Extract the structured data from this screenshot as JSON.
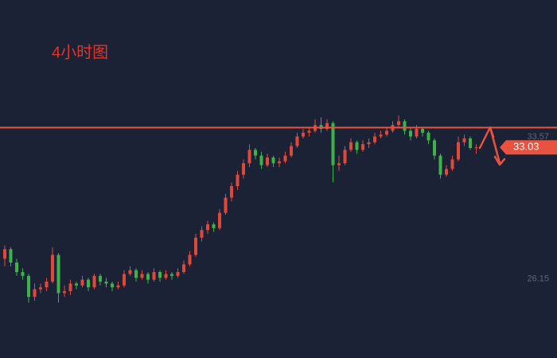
{
  "chart_data": {
    "type": "candlestick",
    "title": "4小时图",
    "up_color": "#e0493a",
    "down_color": "#3db24a",
    "line_color": "#e8523f",
    "ylim": [
      22.0,
      40.75
    ],
    "yticks": [
      26.15,
      33.57
    ],
    "resistance": 34.07,
    "last_price": 33.03,
    "ohlc": [
      [
        27.2,
        27.9,
        26.8,
        27.7
      ],
      [
        27.7,
        27.8,
        26.8,
        27.0
      ],
      [
        27.0,
        27.2,
        26.3,
        26.5
      ],
      [
        26.5,
        26.7,
        26.1,
        26.3
      ],
      [
        26.3,
        26.4,
        24.9,
        25.2
      ],
      [
        25.2,
        25.9,
        25.0,
        25.6
      ],
      [
        25.6,
        25.9,
        25.4,
        25.7
      ],
      [
        25.7,
        26.2,
        25.5,
        26.0
      ],
      [
        26.0,
        27.8,
        25.9,
        27.4
      ],
      [
        27.4,
        27.5,
        24.9,
        25.4
      ],
      [
        25.4,
        25.8,
        25.2,
        25.5
      ],
      [
        25.5,
        26.1,
        25.3,
        25.9
      ],
      [
        25.9,
        26.0,
        25.6,
        25.8
      ],
      [
        25.8,
        26.3,
        25.7,
        26.1
      ],
      [
        26.1,
        26.2,
        25.5,
        25.7
      ],
      [
        25.7,
        26.4,
        25.6,
        26.3
      ],
      [
        26.3,
        26.4,
        25.8,
        26.0
      ],
      [
        26.0,
        26.2,
        25.7,
        25.9
      ],
      [
        25.9,
        26.0,
        25.5,
        25.7
      ],
      [
        25.7,
        26.0,
        25.6,
        25.8
      ],
      [
        25.8,
        26.6,
        25.7,
        26.4
      ],
      [
        26.4,
        26.8,
        26.3,
        26.6
      ],
      [
        26.6,
        26.7,
        26.0,
        26.2
      ],
      [
        26.2,
        26.6,
        26.1,
        26.4
      ],
      [
        26.4,
        26.5,
        25.9,
        26.1
      ],
      [
        26.1,
        26.7,
        26.0,
        26.5
      ],
      [
        26.5,
        26.6,
        26.0,
        26.2
      ],
      [
        26.2,
        26.6,
        26.1,
        26.4
      ],
      [
        26.4,
        26.5,
        26.1,
        26.3
      ],
      [
        26.3,
        26.7,
        26.2,
        26.5
      ],
      [
        26.5,
        27.1,
        26.4,
        26.9
      ],
      [
        26.9,
        27.6,
        26.8,
        27.4
      ],
      [
        27.4,
        28.5,
        27.3,
        28.3
      ],
      [
        28.3,
        28.9,
        28.1,
        28.7
      ],
      [
        28.7,
        29.2,
        28.5,
        29.0
      ],
      [
        29.0,
        29.1,
        28.6,
        28.8
      ],
      [
        28.8,
        29.8,
        28.7,
        29.6
      ],
      [
        29.6,
        30.6,
        29.5,
        30.4
      ],
      [
        30.4,
        31.2,
        30.2,
        31.0
      ],
      [
        31.0,
        31.8,
        30.8,
        31.6
      ],
      [
        31.6,
        32.4,
        31.4,
        32.2
      ],
      [
        32.2,
        33.2,
        32.0,
        32.9
      ],
      [
        32.9,
        33.0,
        32.4,
        32.6
      ],
      [
        32.6,
        32.8,
        31.9,
        32.1
      ],
      [
        32.1,
        32.7,
        32.0,
        32.5
      ],
      [
        32.5,
        32.6,
        32.0,
        32.2
      ],
      [
        32.2,
        32.5,
        32.0,
        32.3
      ],
      [
        32.3,
        32.8,
        32.2,
        32.6
      ],
      [
        32.6,
        33.3,
        32.5,
        33.1
      ],
      [
        33.1,
        33.8,
        33.0,
        33.6
      ],
      [
        33.6,
        34.0,
        33.5,
        33.8
      ],
      [
        33.8,
        34.1,
        33.6,
        33.9
      ],
      [
        33.9,
        34.5,
        33.8,
        34.2
      ],
      [
        34.2,
        34.6,
        33.8,
        34.0
      ],
      [
        34.0,
        34.5,
        33.9,
        34.3
      ],
      [
        34.3,
        34.4,
        31.2,
        32.1
      ],
      [
        32.1,
        32.6,
        31.8,
        32.2
      ],
      [
        32.2,
        33.1,
        32.1,
        32.9
      ],
      [
        32.9,
        33.5,
        32.8,
        33.3
      ],
      [
        33.3,
        33.4,
        32.7,
        32.9
      ],
      [
        32.9,
        33.4,
        32.8,
        33.2
      ],
      [
        33.2,
        33.5,
        33.0,
        33.3
      ],
      [
        33.3,
        33.8,
        33.2,
        33.6
      ],
      [
        33.6,
        33.9,
        33.5,
        33.7
      ],
      [
        33.7,
        34.1,
        33.6,
        33.9
      ],
      [
        33.9,
        34.4,
        33.8,
        34.2
      ],
      [
        34.2,
        34.7,
        34.1,
        34.4
      ],
      [
        34.4,
        34.5,
        33.7,
        33.9
      ],
      [
        33.9,
        34.1,
        33.4,
        33.6
      ],
      [
        33.6,
        34.2,
        33.5,
        34.0
      ],
      [
        34.0,
        34.1,
        33.6,
        33.8
      ],
      [
        33.8,
        33.9,
        33.2,
        33.4
      ],
      [
        33.4,
        33.5,
        32.4,
        32.6
      ],
      [
        32.6,
        32.7,
        31.4,
        31.6
      ],
      [
        31.6,
        32.1,
        31.5,
        31.9
      ],
      [
        31.9,
        32.6,
        31.8,
        32.4
      ],
      [
        32.4,
        33.6,
        32.3,
        33.3
      ],
      [
        33.3,
        33.7,
        33.1,
        33.5
      ],
      [
        33.5,
        33.6,
        32.9,
        33.0
      ],
      [
        33.0,
        33.2,
        32.7,
        33.03
      ]
    ]
  }
}
